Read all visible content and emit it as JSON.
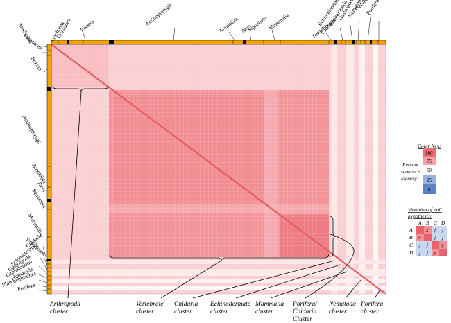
{
  "top_labels": [
    "Crustacea",
    "Arachnida",
    "Insecta",
    "Actinopterygii",
    "Amphibia",
    "Aves",
    "Squamata",
    "Mammalia",
    "Testudines",
    "Cnidaria",
    "Echinodermata",
    "Cephalopoda",
    "Gastropoda",
    "Nematoda",
    "Platyhelminthes",
    "Porifera"
  ],
  "left_labels": [
    "Arachnida",
    "Crustacea",
    "Insecta",
    "Actinopterygii",
    "Amphibia",
    "Aves",
    "Squamata",
    "Mammalia",
    "Testudines",
    "Cnidaria",
    "Echinodermata",
    "Gastropoda",
    "Cephalopoda",
    "Nematoda",
    "Platyhelminthes",
    "Porifera"
  ],
  "clusters": [
    {
      "line1": "Arthropoda",
      "line2": "cluster"
    },
    {
      "line1": "Vertebrate",
      "line2": "cluster"
    },
    {
      "line1": "Cnidaria",
      "line2": "cluster"
    },
    {
      "line1": "Echinodermata",
      "line2": "cluster"
    },
    {
      "line1": "Mammalia",
      "line2": "cluster"
    },
    {
      "line1": "Porifera/",
      "line2": "Cnidaria",
      "line3": "Cluster"
    },
    {
      "line1": "Nematoda",
      "line2": "cluster"
    },
    {
      "line1": "Porifera",
      "line2": "cluster"
    }
  ],
  "color_key": {
    "title": "Color Key:",
    "ticks": [
      "100",
      "75",
      "50",
      "25",
      "0"
    ],
    "label_lines": [
      "Percent",
      "sequence",
      "identity:"
    ]
  },
  "violation": {
    "title_line1": "Violation of null",
    "title_line2": "hypothesis:",
    "cols": [
      "A",
      "B",
      "C",
      "D"
    ],
    "rows": [
      "A",
      "B",
      "C",
      "D"
    ],
    "cells": [
      [
        "",
        "x",
        "j",
        "j"
      ],
      [
        "x",
        "",
        "j",
        "j"
      ],
      [
        "j",
        "j",
        "",
        "y"
      ],
      [
        "j",
        "j",
        "y",
        ""
      ]
    ]
  },
  "colors": {
    "heatmap_base": "#fad2d4",
    "heatmap_block": "#f08a90",
    "taxon_bar": "#f5a300",
    "key_high": "#e8636b",
    "key_low": "#5a82c4"
  }
}
